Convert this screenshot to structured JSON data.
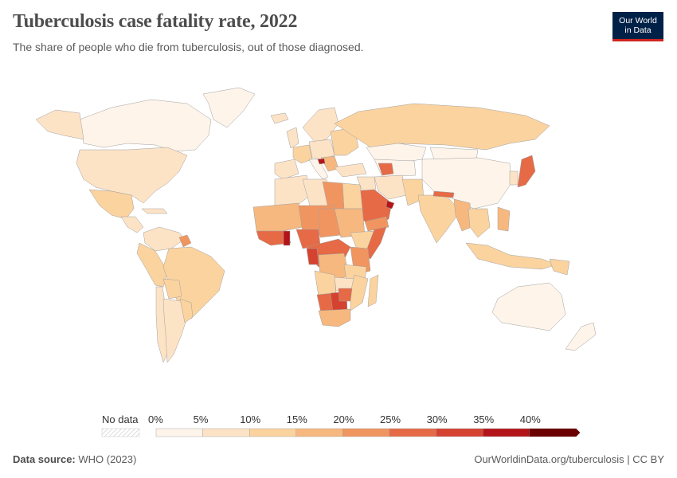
{
  "header": {
    "title": "Tuberculosis case fatality rate, 2022",
    "subtitle": "The share of people who die from tuberculosis, out of those diagnosed.",
    "logo_line1": "Our World",
    "logo_line2": "in Data"
  },
  "legend": {
    "no_data_label": "No data",
    "ticks": [
      "0%",
      "5%",
      "10%",
      "15%",
      "20%",
      "25%",
      "30%",
      "35%",
      "40%"
    ],
    "colors": [
      "#fef4ea",
      "#fde3c6",
      "#fbd39f",
      "#f6b87e",
      "#f19560",
      "#e56a45",
      "#d5422f",
      "#b31419",
      "#8a0000",
      "#6b0000"
    ]
  },
  "footer": {
    "source_label": "Data source:",
    "source_value": "WHO (2023)",
    "url": "OurWorldinData.org/tuberculosis | CC BY"
  },
  "map_colors": {
    "ocean": "#ffffff",
    "border": "#a0a0a0"
  }
}
